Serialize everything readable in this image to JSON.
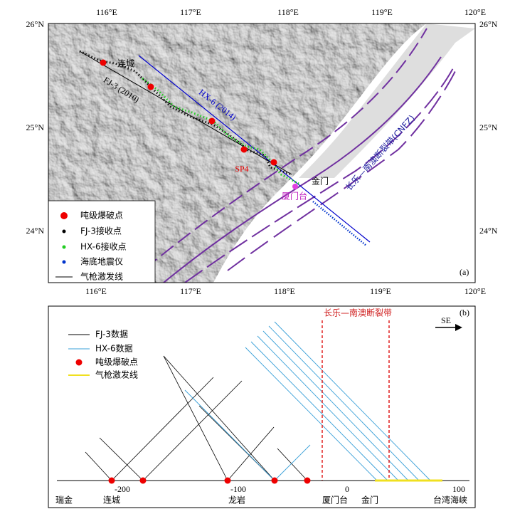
{
  "map": {
    "lon_labels": [
      "116°E",
      "117°E",
      "118°E",
      "119°E",
      "120°E"
    ],
    "lat_labels": [
      "26°N",
      "25°N",
      "24°N"
    ],
    "place_liancheng": "连城",
    "line_fj3": "FJ-3 (2010)",
    "line_hx6": "HX-6 (2014)",
    "shot_sp4": "SP4",
    "place_jinmen": "金门",
    "station_xiamen": "厦门台",
    "fault_label": "长乐—南澳断裂带(CNFZ)",
    "panel_label": "(a)",
    "legend": [
      "吨级爆破点",
      "FJ-3接收点",
      "HX-6接收点",
      "海底地震仪",
      "气枪激发线"
    ]
  },
  "profile": {
    "fault_label": "长乐—南澳断裂带",
    "direction": "SE",
    "panel_label": "(b)",
    "legend": [
      "FJ-3数据",
      "HX-6数据",
      "吨级爆破点",
      "气枪激发线"
    ],
    "axis_ticks": [
      "-200",
      "-100",
      "0",
      "100"
    ],
    "places": [
      "瑞金",
      "连城",
      "龙岩",
      "厦门台",
      "金门",
      "台湾海峡"
    ]
  }
}
